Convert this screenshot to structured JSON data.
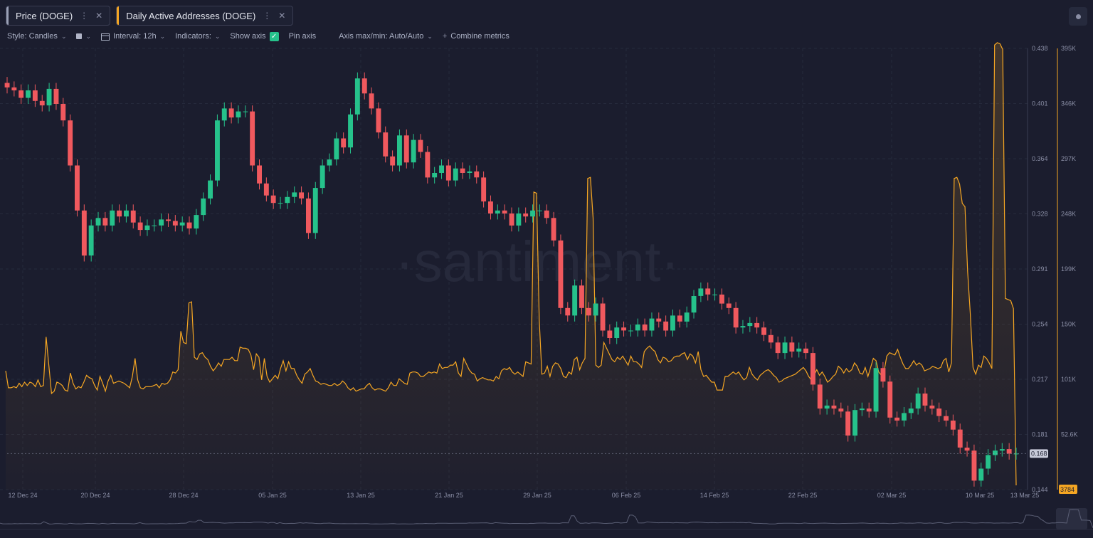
{
  "tabs": [
    {
      "label": "Price (DOGE)",
      "color": "#9aa0b5"
    },
    {
      "label": "Daily Active Addresses (DOGE)",
      "color": "#f5a623"
    }
  ],
  "toolbar": {
    "style": "Style: Candles",
    "interval": "Interval: 12h",
    "indicators": "Indicators:",
    "show_axis": "Show axis",
    "pin_axis": "Pin axis",
    "axis_mode": "Axis max/min: Auto/Auto",
    "combine": "Combine metrics"
  },
  "watermark": "·santiment·",
  "chart_data": {
    "type": "line",
    "x": [
      "12 Dec 24",
      "20 Dec 24",
      "28 Dec 24",
      "05 Jan 25",
      "13 Jan 25",
      "21 Jan 25",
      "29 Jan 25",
      "06 Feb 25",
      "14 Feb 25",
      "22 Feb 25",
      "02 Mar 25",
      "10 Mar 25",
      "13 Mar 25"
    ],
    "price_ticks": [
      "0.438",
      "0.401",
      "0.364",
      "0.328",
      "0.291",
      "0.254",
      "0.217",
      "0.181",
      "0.144"
    ],
    "price_range": [
      0.144,
      0.438
    ],
    "current_price": "0.168",
    "daa_ticks": [
      "395K",
      "346K",
      "297K",
      "248K",
      "199K",
      "150K",
      "101K",
      "52.6K"
    ],
    "daa_range": [
      3784,
      395000
    ],
    "current_daa": "3784",
    "colors": {
      "up": "#26c28b",
      "down": "#f0595e",
      "daa": "#f5a623"
    },
    "price_close": [
      0.412,
      0.41,
      0.405,
      0.41,
      0.403,
      0.4,
      0.411,
      0.401,
      0.39,
      0.36,
      0.33,
      0.3,
      0.32,
      0.325,
      0.32,
      0.33,
      0.326,
      0.33,
      0.322,
      0.317,
      0.32,
      0.32,
      0.324,
      0.323,
      0.32,
      0.322,
      0.318,
      0.327,
      0.338,
      0.35,
      0.39,
      0.398,
      0.392,
      0.396,
      0.396,
      0.36,
      0.348,
      0.34,
      0.335,
      0.335,
      0.339,
      0.342,
      0.338,
      0.315,
      0.345,
      0.36,
      0.364,
      0.378,
      0.372,
      0.394,
      0.418,
      0.408,
      0.398,
      0.382,
      0.366,
      0.36,
      0.38,
      0.362,
      0.377,
      0.369,
      0.352,
      0.355,
      0.36,
      0.35,
      0.358,
      0.355,
      0.356,
      0.352,
      0.336,
      0.328,
      0.33,
      0.328,
      0.32,
      0.328,
      0.326,
      0.33,
      0.33,
      0.325,
      0.31,
      0.265,
      0.26,
      0.28,
      0.265,
      0.26,
      0.268,
      0.25,
      0.245,
      0.252,
      0.25,
      0.25,
      0.254,
      0.25,
      0.258,
      0.256,
      0.25,
      0.26,
      0.256,
      0.262,
      0.273,
      0.278,
      0.274,
      0.274,
      0.268,
      0.265,
      0.252,
      0.253,
      0.255,
      0.252,
      0.247,
      0.242,
      0.235,
      0.242,
      0.236,
      0.238,
      0.235,
      0.214,
      0.198,
      0.2,
      0.198,
      0.196,
      0.18,
      0.197,
      0.198,
      0.196,
      0.225,
      0.216,
      0.192,
      0.19,
      0.195,
      0.198,
      0.208,
      0.2,
      0.198,
      0.193,
      0.19,
      0.184,
      0.172,
      0.17,
      0.15,
      0.158,
      0.167,
      0.17,
      0.171,
      0.168,
      0.168
    ],
    "daa": [
      105000,
      90000,
      90000,
      91000,
      90000,
      94000,
      91000,
      95000,
      92000,
      95000,
      94000,
      91000,
      97000,
      91000,
      92000,
      135000,
      110000,
      85000,
      87000,
      95000,
      94000,
      92000,
      88000,
      87000,
      103000,
      94000,
      89000,
      91000,
      90000,
      95000,
      101000,
      99000,
      98000,
      92000,
      88000,
      100000,
      94000,
      87000,
      96000,
      101000,
      94000,
      95000,
      96000,
      95000,
      94000,
      92000,
      90000,
      100000,
      116000,
      97000,
      90000,
      89000,
      91000,
      91000,
      91000,
      92000,
      93000,
      90000,
      94000,
      93000,
      94000,
      97000,
      104000,
      103000,
      106000,
      140000,
      130000,
      129000,
      165000,
      166000,
      117000,
      115000,
      120000,
      121000,
      117000,
      115000,
      109000,
      105000,
      108000,
      112000,
      109000,
      115000,
      115000,
      115000,
      117000,
      114000,
      114000,
      126000,
      125000,
      125000,
      124000,
      119000,
      106000,
      120000,
      117000,
      97000,
      116000,
      100000,
      95000,
      98000,
      101000,
      98000,
      107000,
      114000,
      105000,
      113000,
      107000,
      107000,
      101000,
      97000,
      94000,
      102000,
      104000,
      107000,
      101000,
      96000,
      95000,
      93000,
      94000,
      93000,
      92000,
      92000,
      94000,
      92000,
      93000,
      96000,
      94000,
      90000,
      88000,
      90000,
      87000,
      88000,
      89000,
      89000,
      92000,
      94000,
      90000,
      88000,
      89000,
      89000,
      88000,
      87000,
      90000,
      95000,
      92000,
      92000,
      98000,
      96000,
      94000,
      93000,
      103000,
      104000,
      104000,
      103000,
      100000,
      100000,
      102000,
      104000,
      103000,
      104000,
      103000,
      111000,
      107000,
      108000,
      108000,
      110000,
      110000,
      113000,
      103000,
      100000,
      116000,
      111000,
      106000,
      103000,
      102000,
      96000,
      98000,
      99000,
      98000,
      97000,
      97000,
      96000,
      100000,
      98000,
      105000,
      107000,
      106000,
      108000,
      104000,
      102000,
      104000,
      102000,
      100000,
      113000,
      112000,
      111000,
      263000,
      262000,
      150000,
      102000,
      103000,
      109000,
      100000,
      109000,
      112000,
      111000,
      107000,
      100000,
      99000,
      104000,
      102000,
      115000,
      117000,
      106000,
      112000,
      116000,
      275000,
      276000,
      240000,
      110000,
      108000,
      110000,
      130000,
      125000,
      120000,
      115000,
      113000,
      117000,
      115000,
      118000,
      114000,
      110000,
      118000,
      113000,
      113000,
      111000,
      108000,
      122000,
      125000,
      127000,
      124000,
      122000,
      115000,
      112000,
      117000,
      116000,
      113000,
      114000,
      117000,
      118000,
      118000,
      120000,
      121000,
      115000,
      120000,
      118000,
      112000,
      122000,
      106000,
      100000,
      101000,
      98000,
      95000,
      95000,
      88000,
      88000,
      88000,
      100000,
      100000,
      102000,
      104000,
      102000,
      104000,
      100000,
      97000,
      99000,
      108000,
      102000,
      99000,
      97000,
      101000,
      103000,
      105000,
      106000,
      104000,
      101000,
      99000,
      95000,
      96000,
      98000,
      99000,
      100000,
      101000,
      102000,
      104000,
      106000,
      108000,
      105000,
      100000,
      97000,
      101000,
      106000,
      101000,
      104000,
      100000,
      95000,
      97000,
      100000,
      102000,
      109000,
      107000,
      103000,
      107000,
      104000,
      106000,
      112000,
      109000,
      103000,
      102000,
      108000,
      100000,
      108000,
      116000,
      114000,
      104000,
      101000,
      105000,
      118000,
      121000,
      120000,
      119000,
      124000,
      117000,
      111000,
      107000,
      107000,
      110000,
      114000,
      110000,
      112000,
      110000,
      105000,
      106000,
      107000,
      109000,
      108000,
      107000,
      108000,
      114000,
      116000,
      104000,
      112000,
      275000,
      276000,
      270000,
      253000,
      250000,
      193000,
      155000,
      108000,
      102000,
      110000,
      108000,
      118000,
      116000,
      112000,
      107000,
      393000,
      395000,
      394000,
      389000,
      169000,
      168000,
      167000,
      160000,
      3784
    ]
  }
}
